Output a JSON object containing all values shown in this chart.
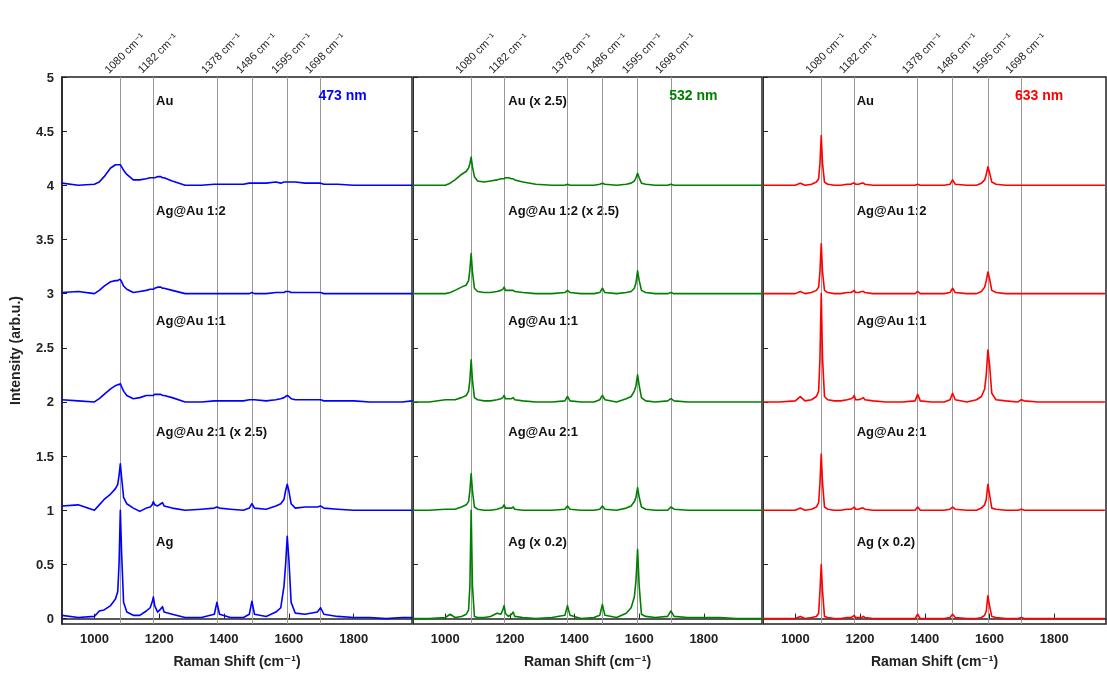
{
  "chart_data": [
    {
      "type": "line",
      "title": "473 nm",
      "annotations": [
        "Au",
        "Ag@Au 1:2",
        "Ag@Au 1:1",
        "Ag@Au 2:1 (x 2.5)",
        "Ag"
      ],
      "xlabel": "Raman Shift (cm⁻¹)",
      "ylabel": "Intensity (arb.u.)",
      "xlim": [
        900,
        1980
      ],
      "ylim": [
        -0.05,
        5
      ],
      "xticks": [
        1000,
        1200,
        1400,
        1600,
        1800
      ],
      "yticks": [
        0,
        0.5,
        1,
        1.5,
        2,
        2.5,
        3,
        3.5,
        4,
        4.5,
        5
      ],
      "x": [
        900,
        950,
        1000,
        1015,
        1030,
        1050,
        1065,
        1072,
        1076,
        1080,
        1084,
        1090,
        1100,
        1120,
        1140,
        1160,
        1172,
        1178,
        1182,
        1186,
        1195,
        1205,
        1210,
        1215,
        1240,
        1280,
        1330,
        1370,
        1378,
        1386,
        1420,
        1460,
        1478,
        1486,
        1494,
        1530,
        1560,
        1575,
        1585,
        1590,
        1595,
        1600,
        1607,
        1620,
        1650,
        1688,
        1698,
        1708,
        1750,
        1800,
        1850,
        1900,
        1950,
        1980
      ],
      "series": [
        {
          "color": "#0000ff",
          "values": [
            4.02,
            4.0,
            4.01,
            4.03,
            4.08,
            4.16,
            4.19,
            4.19,
            4.19,
            4.19,
            4.17,
            4.14,
            4.1,
            4.05,
            4.05,
            4.06,
            4.07,
            4.07,
            4.07,
            4.07,
            4.08,
            4.08,
            4.07,
            4.07,
            4.04,
            4.0,
            4.0,
            4.01,
            4.01,
            4.01,
            4.01,
            4.01,
            4.02,
            4.02,
            4.02,
            4.02,
            4.03,
            4.02,
            4.03,
            4.03,
            4.03,
            4.03,
            4.03,
            4.03,
            4.02,
            4.02,
            4.02,
            4.01,
            4.01,
            4.0,
            4.0,
            4.0,
            4.0,
            4.0
          ]
        },
        {
          "color": "#0000ff",
          "values": [
            3.01,
            3.02,
            3.0,
            3.03,
            3.07,
            3.11,
            3.12,
            3.12,
            3.13,
            3.13,
            3.11,
            3.07,
            3.04,
            3.01,
            3.02,
            3.03,
            3.04,
            3.04,
            3.04,
            3.05,
            3.06,
            3.06,
            3.05,
            3.05,
            3.03,
            3.0,
            3.0,
            3.0,
            3.0,
            3.0,
            3.0,
            3.0,
            3.0,
            3.01,
            3.0,
            3.0,
            3.01,
            3.01,
            3.01,
            3.02,
            3.02,
            3.02,
            3.01,
            3.01,
            3.01,
            3.01,
            3.01,
            3.0,
            3.0,
            3.0,
            3.0,
            3.0,
            3.0,
            3.0
          ]
        },
        {
          "color": "#0000ff",
          "values": [
            2.02,
            2.01,
            2.0,
            2.03,
            2.07,
            2.12,
            2.15,
            2.16,
            2.16,
            2.17,
            2.14,
            2.1,
            2.06,
            2.03,
            2.04,
            2.06,
            2.06,
            2.06,
            2.06,
            2.07,
            2.07,
            2.07,
            2.06,
            2.06,
            2.04,
            2.0,
            2.0,
            2.01,
            2.01,
            2.01,
            2.01,
            2.01,
            2.02,
            2.02,
            2.02,
            2.01,
            2.02,
            2.03,
            2.04,
            2.05,
            2.06,
            2.05,
            2.03,
            2.02,
            2.02,
            2.02,
            2.02,
            2.01,
            2.01,
            2.01,
            2.0,
            2.0,
            2.0,
            2.01
          ]
        },
        {
          "color": "#0000ff",
          "values": [
            1.04,
            1.05,
            1.0,
            1.05,
            1.1,
            1.15,
            1.2,
            1.24,
            1.32,
            1.43,
            1.3,
            1.12,
            1.06,
            1.02,
            0.99,
            1.02,
            1.03,
            1.05,
            1.08,
            1.05,
            1.04,
            1.06,
            1.07,
            1.04,
            1.02,
            1.0,
            1.01,
            1.02,
            1.03,
            1.02,
            1.01,
            1.0,
            1.02,
            1.06,
            1.02,
            1.01,
            1.04,
            1.06,
            1.1,
            1.18,
            1.24,
            1.18,
            1.06,
            1.02,
            1.03,
            1.03,
            1.04,
            1.02,
            1.01,
            1.0,
            1.0,
            1.0,
            1.0,
            1.0
          ]
        },
        {
          "color": "#0000ff",
          "values": [
            0.03,
            0.01,
            0.02,
            0.07,
            0.08,
            0.12,
            0.18,
            0.25,
            0.5,
            1.0,
            0.6,
            0.15,
            0.06,
            0.03,
            0.03,
            0.07,
            0.1,
            0.15,
            0.2,
            0.12,
            0.06,
            0.09,
            0.11,
            0.06,
            0.04,
            0.01,
            0.01,
            0.04,
            0.15,
            0.04,
            0.01,
            0.01,
            0.04,
            0.16,
            0.04,
            0.02,
            0.06,
            0.1,
            0.3,
            0.5,
            0.76,
            0.55,
            0.15,
            0.05,
            0.04,
            0.06,
            0.1,
            0.04,
            0.02,
            0.01,
            0.01,
            0.0,
            0.01,
            0.01
          ]
        }
      ],
      "ref_lines": [
        {
          "axis": "x",
          "value": 1080,
          "label": "1080 cm⁻¹",
          "color": "#999999"
        },
        {
          "axis": "x",
          "value": 1182,
          "label": "1182 cm⁻¹",
          "color": "#999999"
        },
        {
          "axis": "x",
          "value": 1378,
          "label": "1378 cm⁻¹",
          "color": "#999999"
        },
        {
          "axis": "x",
          "value": 1486,
          "label": "1486 cm⁻¹",
          "color": "#999999"
        },
        {
          "axis": "x",
          "value": 1595,
          "label": "1595 cm⁻¹",
          "color": "#999999"
        },
        {
          "axis": "x",
          "value": 1698,
          "label": "1698 cm⁻¹",
          "color": "#999999"
        }
      ]
    },
    {
      "type": "line",
      "title": "532 nm",
      "annotations": [
        "Au (x 2.5)",
        "Ag@Au 1:2 (x 2.5)",
        "Ag@Au 1:1",
        "Ag@Au 2:1",
        "Ag (x 0.2)"
      ],
      "xlabel": "Raman Shift (cm⁻¹)",
      "xlim": [
        900,
        1980
      ],
      "ylim": [
        -0.05,
        5
      ],
      "xticks": [
        1000,
        1200,
        1400,
        1600,
        1800
      ],
      "yticks": [
        0,
        0.5,
        1,
        1.5,
        2,
        2.5,
        3,
        3.5,
        4,
        4.5,
        5
      ],
      "tick_labels": "x",
      "x": [
        900,
        950,
        1000,
        1015,
        1030,
        1050,
        1065,
        1072,
        1076,
        1080,
        1084,
        1090,
        1100,
        1120,
        1140,
        1160,
        1172,
        1178,
        1182,
        1186,
        1195,
        1205,
        1210,
        1215,
        1240,
        1280,
        1330,
        1370,
        1378,
        1386,
        1420,
        1460,
        1478,
        1486,
        1494,
        1530,
        1560,
        1575,
        1585,
        1590,
        1595,
        1600,
        1607,
        1620,
        1650,
        1688,
        1698,
        1708,
        1750,
        1800,
        1850,
        1900,
        1950,
        1980
      ],
      "series": [
        {
          "color": "#008000",
          "values": [
            4.0,
            4.0,
            4.0,
            4.02,
            4.05,
            4.1,
            4.13,
            4.16,
            4.2,
            4.26,
            4.17,
            4.08,
            4.04,
            4.03,
            4.04,
            4.05,
            4.06,
            4.06,
            4.06,
            4.07,
            4.07,
            4.06,
            4.06,
            4.05,
            4.03,
            4.01,
            4.0,
            4.0,
            4.01,
            4.0,
            4.0,
            4.0,
            4.01,
            4.02,
            4.01,
            4.0,
            4.01,
            4.02,
            4.04,
            4.07,
            4.11,
            4.07,
            4.02,
            4.01,
            4.0,
            4.0,
            4.01,
            4.0,
            4.0,
            4.0,
            4.0,
            4.0,
            4.0,
            4.0
          ]
        },
        {
          "color": "#008000",
          "values": [
            3.0,
            3.0,
            3.0,
            3.01,
            3.03,
            3.06,
            3.08,
            3.12,
            3.22,
            3.37,
            3.2,
            3.05,
            3.02,
            3.01,
            3.01,
            3.02,
            3.03,
            3.04,
            3.06,
            3.03,
            3.03,
            3.03,
            3.03,
            3.02,
            3.01,
            3.0,
            3.0,
            3.01,
            3.03,
            3.01,
            3.0,
            3.0,
            3.01,
            3.05,
            3.01,
            3.0,
            3.01,
            3.02,
            3.05,
            3.1,
            3.21,
            3.12,
            3.03,
            3.01,
            3.0,
            3.0,
            3.01,
            3.0,
            3.0,
            3.0,
            3.0,
            3.0,
            3.0,
            3.0
          ]
        },
        {
          "color": "#008000",
          "values": [
            2.0,
            2.0,
            2.02,
            2.02,
            2.02,
            2.04,
            2.06,
            2.1,
            2.2,
            2.39,
            2.2,
            2.04,
            2.02,
            2.01,
            2.01,
            2.02,
            2.03,
            2.04,
            2.06,
            2.03,
            2.03,
            2.03,
            2.04,
            2.02,
            2.01,
            2.0,
            2.0,
            2.01,
            2.05,
            2.01,
            2.0,
            2.0,
            2.02,
            2.06,
            2.02,
            2.0,
            2.03,
            2.05,
            2.1,
            2.15,
            2.25,
            2.15,
            2.04,
            2.01,
            2.0,
            2.01,
            2.03,
            2.01,
            2.0,
            2.0,
            2.0,
            2.0,
            2.0,
            2.0
          ]
        },
        {
          "color": "#008000",
          "values": [
            1.0,
            1.0,
            1.01,
            1.01,
            1.01,
            1.03,
            1.05,
            1.08,
            1.18,
            1.34,
            1.18,
            1.03,
            1.01,
            1.0,
            1.0,
            1.01,
            1.02,
            1.03,
            1.05,
            1.02,
            1.02,
            1.02,
            1.03,
            1.01,
            1.0,
            1.0,
            1.0,
            1.01,
            1.04,
            1.01,
            1.0,
            1.0,
            1.01,
            1.04,
            1.01,
            1.0,
            1.02,
            1.04,
            1.08,
            1.12,
            1.21,
            1.12,
            1.03,
            1.01,
            1.0,
            1.0,
            1.03,
            1.01,
            1.0,
            1.0,
            1.0,
            1.0,
            1.0,
            1.0
          ]
        },
        {
          "color": "#008000",
          "values": [
            0.0,
            0.0,
            0.01,
            0.04,
            0.01,
            0.02,
            0.04,
            0.08,
            0.3,
            1.0,
            0.3,
            0.02,
            0.01,
            0.01,
            0.02,
            0.05,
            0.04,
            0.08,
            0.12,
            0.05,
            0.02,
            0.04,
            0.06,
            0.02,
            0.01,
            0.0,
            0.01,
            0.03,
            0.12,
            0.03,
            0.0,
            0.01,
            0.03,
            0.13,
            0.03,
            0.01,
            0.05,
            0.1,
            0.2,
            0.35,
            0.64,
            0.3,
            0.04,
            0.02,
            0.01,
            0.02,
            0.07,
            0.02,
            0.01,
            0.01,
            0.01,
            0.0,
            0.0,
            0.0
          ]
        }
      ],
      "ref_lines": [
        {
          "axis": "x",
          "value": 1080,
          "label": "1080 cm⁻¹",
          "color": "#999999"
        },
        {
          "axis": "x",
          "value": 1182,
          "label": "1182 cm⁻¹",
          "color": "#999999"
        },
        {
          "axis": "x",
          "value": 1378,
          "label": "1378 cm⁻¹",
          "color": "#999999"
        },
        {
          "axis": "x",
          "value": 1486,
          "label": "1486 cm⁻¹",
          "color": "#999999"
        },
        {
          "axis": "x",
          "value": 1595,
          "label": "1595 cm⁻¹",
          "color": "#999999"
        },
        {
          "axis": "x",
          "value": 1698,
          "label": "1698 cm⁻¹",
          "color": "#999999"
        }
      ]
    },
    {
      "type": "line",
      "title": "633 nm",
      "annotations": [
        "Au",
        "Ag@Au 1:2",
        "Ag@Au 1:1",
        "Ag@Au 2:1",
        "Ag (x 0.2)"
      ],
      "xlabel": "Raman Shift (cm⁻¹)",
      "xlim": [
        900,
        1960
      ],
      "ylim": [
        -0.05,
        5
      ],
      "xticks": [
        1000,
        1200,
        1400,
        1600,
        1800
      ],
      "yticks": [
        0,
        0.5,
        1,
        1.5,
        2,
        2.5,
        3,
        3.5,
        4,
        4.5,
        5
      ],
      "tick_labels": "x",
      "x": [
        900,
        950,
        1000,
        1015,
        1030,
        1050,
        1065,
        1072,
        1076,
        1080,
        1084,
        1090,
        1100,
        1120,
        1140,
        1160,
        1172,
        1178,
        1182,
        1186,
        1195,
        1205,
        1210,
        1215,
        1240,
        1280,
        1330,
        1370,
        1378,
        1386,
        1420,
        1460,
        1478,
        1486,
        1494,
        1530,
        1560,
        1575,
        1585,
        1590,
        1595,
        1600,
        1607,
        1620,
        1650,
        1688,
        1698,
        1708,
        1750,
        1800,
        1850,
        1900,
        1930,
        1955
      ],
      "series": [
        {
          "color": "#ff0000",
          "values": [
            4.0,
            4.0,
            4.0,
            4.02,
            4.0,
            4.01,
            4.03,
            4.06,
            4.2,
            4.46,
            4.2,
            4.03,
            4.01,
            4.0,
            4.0,
            4.01,
            4.01,
            4.02,
            4.02,
            4.01,
            4.01,
            4.02,
            4.02,
            4.01,
            4.0,
            4.0,
            4.0,
            4.0,
            4.01,
            4.0,
            4.0,
            4.0,
            4.01,
            4.05,
            4.01,
            4.0,
            4.0,
            4.02,
            4.05,
            4.1,
            4.17,
            4.12,
            4.03,
            4.01,
            4.0,
            4.0,
            4.0,
            4.0,
            4.0,
            4.0,
            4.0,
            4.0,
            4.0,
            4.0
          ]
        },
        {
          "color": "#ff0000",
          "values": [
            3.0,
            3.0,
            3.0,
            3.02,
            3.0,
            3.01,
            3.03,
            3.06,
            3.2,
            3.46,
            3.2,
            3.03,
            3.01,
            3.0,
            3.0,
            3.01,
            3.01,
            3.02,
            3.03,
            3.01,
            3.01,
            3.02,
            3.02,
            3.01,
            3.0,
            3.0,
            3.0,
            3.0,
            3.02,
            3.0,
            3.0,
            3.0,
            3.01,
            3.05,
            3.01,
            3.0,
            3.0,
            3.02,
            3.06,
            3.12,
            3.2,
            3.14,
            3.03,
            3.01,
            3.0,
            3.0,
            3.0,
            3.0,
            3.0,
            3.0,
            3.0,
            3.0,
            3.0,
            3.0
          ]
        },
        {
          "color": "#ff0000",
          "values": [
            2.0,
            2.0,
            2.01,
            2.05,
            2.01,
            2.02,
            2.05,
            2.1,
            2.4,
            3.0,
            2.4,
            2.05,
            2.02,
            2.01,
            2.01,
            2.02,
            2.03,
            2.04,
            2.06,
            2.02,
            2.02,
            2.03,
            2.04,
            2.02,
            2.01,
            2.0,
            2.0,
            2.01,
            2.07,
            2.01,
            2.0,
            2.0,
            2.02,
            2.08,
            2.02,
            2.0,
            2.02,
            2.05,
            2.12,
            2.25,
            2.48,
            2.35,
            2.08,
            2.02,
            2.01,
            2.0,
            2.02,
            2.01,
            2.0,
            2.0,
            2.0,
            2.0,
            2.0,
            2.0
          ]
        },
        {
          "color": "#ff0000",
          "values": [
            1.0,
            1.0,
            1.0,
            1.02,
            1.0,
            1.01,
            1.03,
            1.07,
            1.25,
            1.52,
            1.25,
            1.03,
            1.01,
            1.0,
            1.0,
            1.01,
            1.01,
            1.02,
            1.03,
            1.01,
            1.01,
            1.02,
            1.02,
            1.01,
            1.0,
            1.0,
            1.0,
            1.0,
            1.03,
            1.0,
            1.0,
            1.0,
            1.01,
            1.03,
            1.01,
            1.0,
            1.0,
            1.02,
            1.05,
            1.1,
            1.24,
            1.15,
            1.02,
            1.01,
            1.0,
            1.0,
            1.01,
            1.0,
            1.0,
            1.0,
            1.0,
            1.0,
            1.0,
            1.0
          ]
        },
        {
          "color": "#ff0000",
          "values": [
            0.0,
            0.0,
            0.0,
            0.02,
            0.0,
            0.01,
            0.02,
            0.05,
            0.25,
            0.5,
            0.25,
            0.02,
            0.01,
            0.0,
            0.0,
            0.01,
            0.01,
            0.02,
            0.03,
            0.01,
            0.01,
            0.01,
            0.02,
            0.01,
            0.0,
            0.0,
            0.0,
            0.0,
            0.04,
            0.0,
            0.0,
            0.0,
            0.01,
            0.04,
            0.01,
            0.0,
            0.0,
            0.01,
            0.03,
            0.07,
            0.21,
            0.12,
            0.02,
            0.01,
            0.0,
            0.0,
            0.01,
            0.0,
            0.0,
            0.0,
            0.0,
            0.0,
            0.0,
            0.0
          ]
        }
      ],
      "ref_lines": [
        {
          "axis": "x",
          "value": 1080,
          "label": "1080 cm⁻¹",
          "color": "#999999"
        },
        {
          "axis": "x",
          "value": 1182,
          "label": "1182 cm⁻¹",
          "color": "#999999"
        },
        {
          "axis": "x",
          "value": 1378,
          "label": "1378 cm⁻¹",
          "color": "#999999"
        },
        {
          "axis": "x",
          "value": 1486,
          "label": "1486 cm⁻¹",
          "color": "#999999"
        },
        {
          "axis": "x",
          "value": 1595,
          "label": "1595 cm⁻¹",
          "color": "#999999"
        },
        {
          "axis": "x",
          "value": 1698,
          "label": "1698 cm⁻¹",
          "color": "#999999"
        }
      ]
    }
  ]
}
